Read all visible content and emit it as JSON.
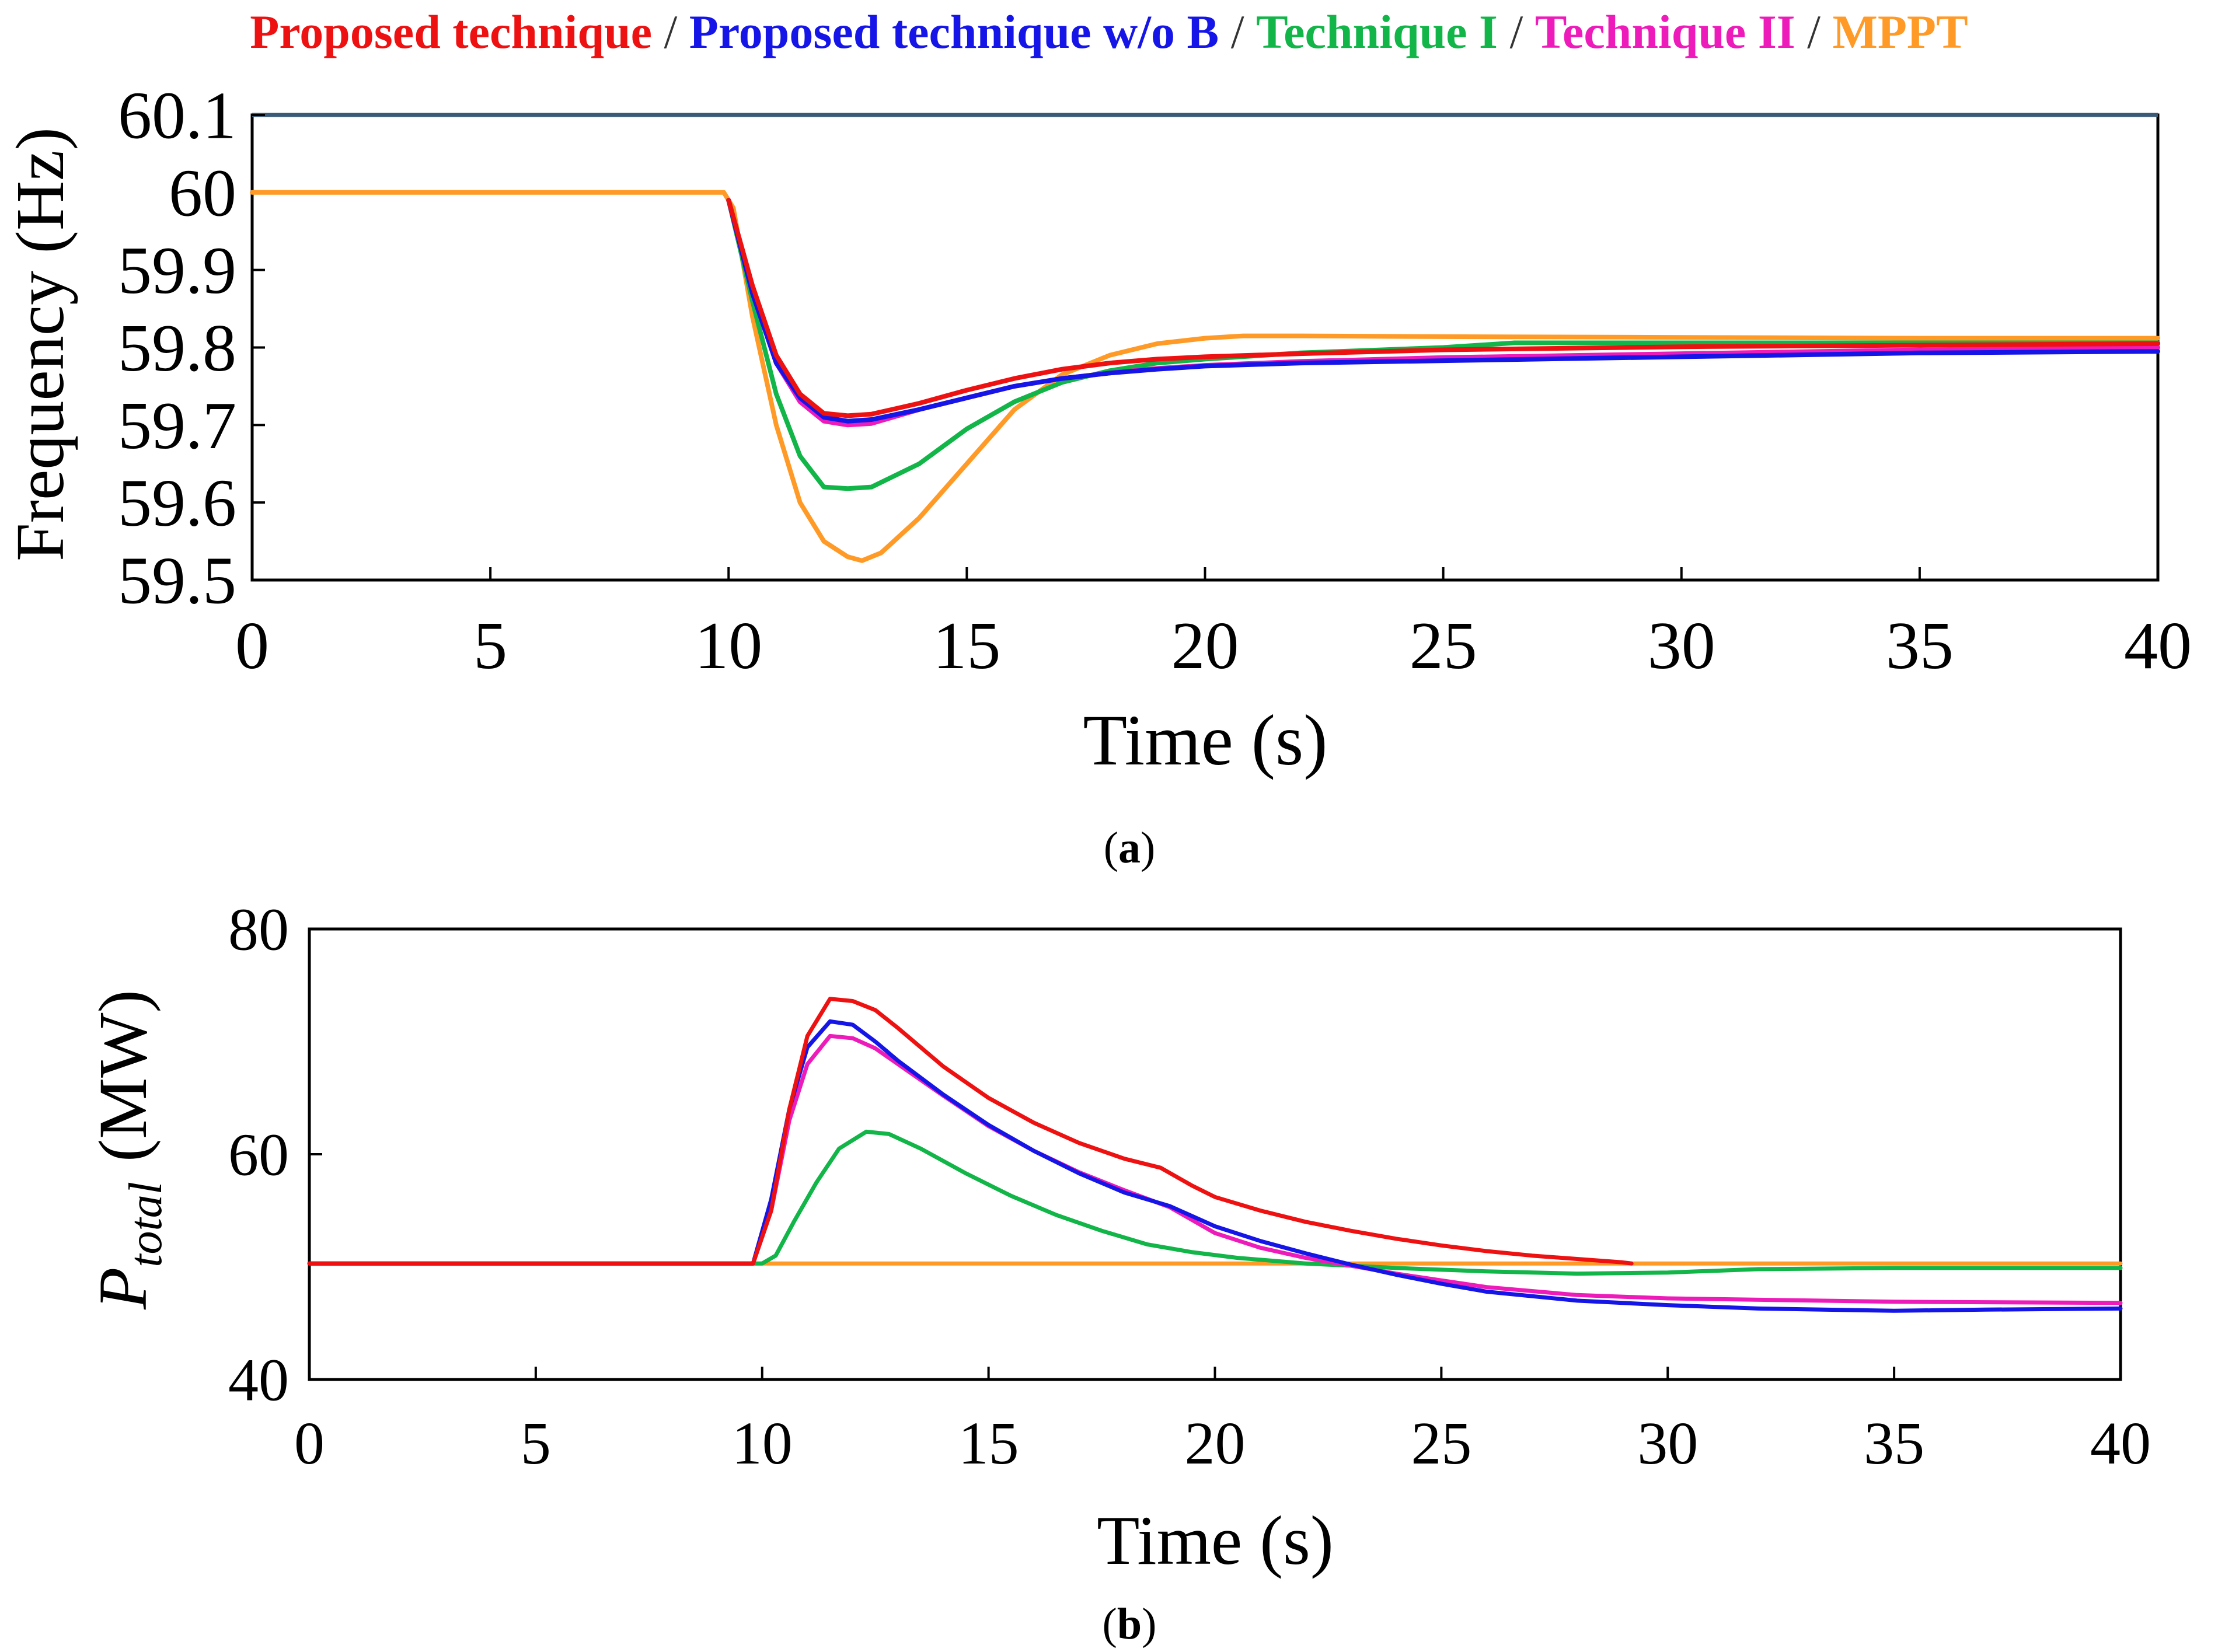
{
  "legend": {
    "separator": " / ",
    "items": [
      {
        "label": "Proposed technique",
        "color": "#ee1111"
      },
      {
        "label": "Proposed technique w/o B",
        "color": "#1515e8"
      },
      {
        "label": "Technique I",
        "color": "#11b548"
      },
      {
        "label": "Technique II",
        "color": "#ee1bbb"
      },
      {
        "label": "MPPT",
        "color": "#ff9a26"
      }
    ]
  },
  "chart_data": [
    {
      "type": "line",
      "panel_label": "(a)",
      "panel_letter": "a",
      "xlabel": "Time (s)",
      "ylabel": "Frequency (Hz)",
      "xlim": [
        0,
        40
      ],
      "ylim": [
        59.5,
        60.1
      ],
      "xticks": [
        "0",
        "5",
        "10",
        "15",
        "20",
        "25",
        "30",
        "35",
        "40"
      ],
      "yticks": [
        "59.5",
        "59.6",
        "59.7",
        "59.8",
        "59.9",
        "60",
        "60.1"
      ],
      "reference_line": {
        "y": 60.1,
        "color": "#3a5a78"
      },
      "series": [
        {
          "name": "MPPT",
          "color": "#ff9a26",
          "x": [
            0,
            9.9,
            10.1,
            10.5,
            11,
            11.5,
            12,
            12.5,
            12.8,
            13.2,
            14,
            15,
            16,
            17,
            18,
            19,
            20,
            20.8,
            22,
            25,
            30,
            35,
            40
          ],
          "y": [
            60,
            60,
            59.98,
            59.84,
            59.7,
            59.6,
            59.55,
            59.53,
            59.525,
            59.535,
            59.58,
            59.65,
            59.72,
            59.765,
            59.79,
            59.805,
            59.812,
            59.815,
            59.815,
            59.814,
            59.813,
            59.812,
            59.812
          ]
        },
        {
          "name": "Technique I",
          "color": "#11b548",
          "x": [
            10,
            10.5,
            11,
            11.5,
            12,
            12.5,
            13,
            14,
            15,
            16,
            17,
            18,
            19,
            20,
            22,
            25,
            26.5,
            30,
            35,
            40
          ],
          "y": [
            59.99,
            59.86,
            59.74,
            59.66,
            59.62,
            59.618,
            59.62,
            59.65,
            59.695,
            59.73,
            59.755,
            59.77,
            59.78,
            59.785,
            59.793,
            59.8,
            59.806,
            59.806,
            59.806,
            59.806
          ]
        },
        {
          "name": "Technique II",
          "color": "#ee1bbb",
          "x": [
            10,
            10.5,
            11,
            11.5,
            12,
            12.5,
            13,
            14,
            15,
            16,
            17,
            18,
            19,
            20,
            22,
            25,
            30,
            35,
            40
          ],
          "y": [
            59.99,
            59.87,
            59.78,
            59.73,
            59.705,
            59.7,
            59.702,
            59.72,
            59.735,
            59.75,
            59.76,
            59.767,
            59.773,
            59.777,
            59.782,
            59.787,
            59.792,
            59.797,
            59.8
          ]
        },
        {
          "name": "Proposed technique w/o B",
          "color": "#1515e8",
          "x": [
            10,
            10.5,
            11,
            11.5,
            12,
            12.5,
            13,
            14,
            15,
            16,
            17,
            18,
            19,
            20,
            22,
            25,
            30,
            35,
            40
          ],
          "y": [
            59.99,
            59.87,
            59.78,
            59.735,
            59.71,
            59.705,
            59.707,
            59.72,
            59.735,
            59.75,
            59.76,
            59.767,
            59.772,
            59.776,
            59.78,
            59.783,
            59.788,
            59.793,
            59.795
          ]
        },
        {
          "name": "Proposed technique",
          "color": "#ee1111",
          "x": [
            10,
            10.5,
            11,
            11.5,
            12,
            12.5,
            13,
            14,
            15,
            16,
            17,
            18,
            19,
            20,
            22,
            25,
            30,
            35,
            40
          ],
          "y": [
            59.99,
            59.88,
            59.79,
            59.74,
            59.715,
            59.712,
            59.714,
            59.728,
            59.745,
            59.76,
            59.772,
            59.78,
            59.785,
            59.788,
            59.792,
            59.797,
            59.801,
            59.803,
            59.805
          ]
        }
      ]
    },
    {
      "type": "line",
      "panel_label": "(b)",
      "panel_letter": "b",
      "xlabel": "Time (s)",
      "ylabel_main": "P",
      "ylabel_sub": "total",
      "ylabel_unit": "(MW)",
      "xlim": [
        0,
        40
      ],
      "ylim": [
        40,
        80
      ],
      "xticks": [
        "0",
        "5",
        "10",
        "15",
        "20",
        "25",
        "30",
        "35",
        "40"
      ],
      "yticks": [
        "40",
        "60",
        "80"
      ],
      "series": [
        {
          "name": "MPPT",
          "color": "#ff9a26",
          "x": [
            0,
            40
          ],
          "y": [
            50.3,
            50.3
          ]
        },
        {
          "name": "Technique I",
          "color": "#11b548",
          "x": [
            0,
            10,
            10.3,
            10.7,
            11.2,
            11.7,
            12.3,
            12.8,
            13.5,
            14.5,
            15.5,
            16.5,
            17.5,
            18.5,
            19.5,
            20.5,
            22,
            24,
            26,
            28,
            30,
            32,
            35,
            40
          ],
          "y": [
            50.3,
            50.3,
            51,
            54,
            57.5,
            60.5,
            62,
            61.8,
            60.5,
            58.3,
            56.3,
            54.6,
            53.2,
            52,
            51.3,
            50.8,
            50.3,
            49.9,
            49.6,
            49.4,
            49.5,
            49.8,
            49.9,
            49.9
          ]
        },
        {
          "name": "Technique II",
          "color": "#ee1bbb",
          "x": [
            0,
            9.8,
            10.2,
            10.6,
            11,
            11.5,
            12,
            12.5,
            13,
            14,
            15,
            16,
            17,
            18,
            19,
            20,
            21,
            22,
            23,
            24,
            25,
            26,
            28,
            30,
            35,
            40
          ],
          "y": [
            50.3,
            50.3,
            55,
            63,
            68,
            70.5,
            70.3,
            69.4,
            68,
            65.2,
            62.5,
            60.3,
            58.4,
            56.8,
            55.3,
            53,
            51.7,
            50.8,
            50.1,
            49.4,
            48.8,
            48.2,
            47.5,
            47.2,
            46.9,
            46.8
          ]
        },
        {
          "name": "Proposed technique w/o B",
          "color": "#1515e8",
          "x": [
            0,
            9.8,
            10.2,
            10.6,
            11,
            11.5,
            12,
            12.5,
            13,
            14,
            15,
            16,
            17,
            18,
            19,
            20,
            21,
            22,
            23,
            24,
            25,
            26,
            28,
            30,
            32,
            35,
            37,
            40
          ],
          "y": [
            50.3,
            50.3,
            56,
            64,
            69.5,
            71.8,
            71.5,
            70,
            68.3,
            65.3,
            62.6,
            60.3,
            58.3,
            56.6,
            55.4,
            53.6,
            52.3,
            51.2,
            50.2,
            49.3,
            48.5,
            47.8,
            47,
            46.6,
            46.3,
            46.1,
            46.2,
            46.3
          ]
        },
        {
          "name": "Proposed technique",
          "color": "#ee1111",
          "x": [
            0,
            9.8,
            10.2,
            10.6,
            11,
            11.5,
            12,
            12.5,
            13,
            14,
            15,
            16,
            17,
            18,
            18.8,
            19.5,
            20,
            21,
            22,
            23,
            24,
            25,
            26,
            27,
            28,
            29,
            29.2
          ],
          "y": [
            50.3,
            50.3,
            55,
            64,
            70.5,
            73.8,
            73.6,
            72.8,
            71.2,
            67.8,
            65,
            62.8,
            61,
            59.6,
            58.8,
            57.2,
            56.2,
            55,
            54,
            53.2,
            52.5,
            51.9,
            51.4,
            51,
            50.7,
            50.4,
            50.3
          ]
        }
      ]
    }
  ]
}
